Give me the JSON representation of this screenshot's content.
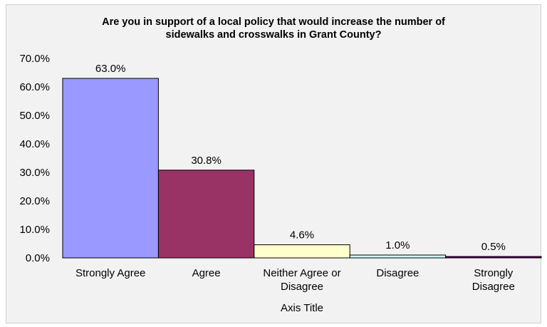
{
  "chart_data": {
    "type": "bar",
    "title_lines": [
      "Are you in support of a local policy that would increase the number of",
      "sidewalks and crosswalks in Grant County?"
    ],
    "categories": [
      [
        "Strongly Agree"
      ],
      [
        "Agree"
      ],
      [
        "Neither Agree or",
        "Disagree"
      ],
      [
        "Disagree"
      ],
      [
        "Strongly",
        "Disagree"
      ]
    ],
    "values": [
      63.0,
      30.8,
      4.6,
      1.0,
      0.5
    ],
    "value_labels": [
      "63.0%",
      "30.8%",
      "4.6%",
      "1.0%",
      "0.5%"
    ],
    "colors": [
      "#9999ff",
      "#993366",
      "#ffffcc",
      "#ccffff",
      "#660066"
    ],
    "xlabel": "Axis Title",
    "ylabel": "",
    "ylim": [
      0,
      70
    ],
    "y_ticks": [
      0,
      10,
      20,
      30,
      40,
      50,
      60,
      70
    ],
    "y_tick_labels": [
      "0.0%",
      "10.0%",
      "20.0%",
      "30.0%",
      "40.0%",
      "50.0%",
      "60.0%",
      "70.0%"
    ],
    "grid": false,
    "legend": "none"
  }
}
